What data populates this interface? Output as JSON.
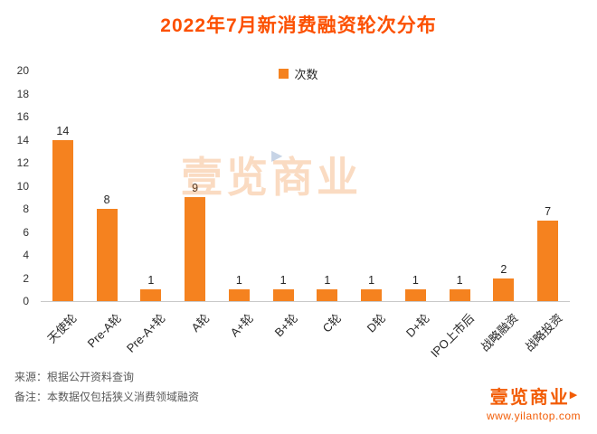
{
  "page": {
    "title": "2022年7月新消费融资轮次分布"
  },
  "legend": {
    "label": "次数"
  },
  "chart_data": {
    "type": "bar",
    "title": "2022年7月新消费融资轮次分布",
    "categories": [
      "天使轮",
      "Pre-A轮",
      "Pre-A+轮",
      "A轮",
      "A+轮",
      "B+轮",
      "C轮",
      "D轮",
      "D+轮",
      "IPO上市后",
      "战略融资",
      "战略投资"
    ],
    "values": [
      14,
      8,
      1,
      9,
      1,
      1,
      1,
      1,
      1,
      1,
      2,
      7
    ],
    "series_name": "次数",
    "ylim": [
      0,
      20
    ],
    "yticks": [
      0,
      2,
      4,
      6,
      8,
      10,
      12,
      14,
      16,
      18,
      20
    ],
    "grid": false,
    "legend": [
      "次数"
    ],
    "legend_position": "top-center",
    "value_labels": true,
    "bar_color": "#F5821F"
  },
  "watermark": {
    "text": "壹览商业"
  },
  "footer": {
    "source": "来源：根据公开资料查询",
    "note": "备注：本数据仅包括狭义消费领域融资"
  },
  "logo": {
    "text": "壹览商业",
    "url": "www.yilantop.com"
  },
  "colors": {
    "title": "#FC5000",
    "bar": "#F5821F",
    "axis_text": "#333333",
    "footer_text": "#595959",
    "brand": "#F25C05"
  }
}
